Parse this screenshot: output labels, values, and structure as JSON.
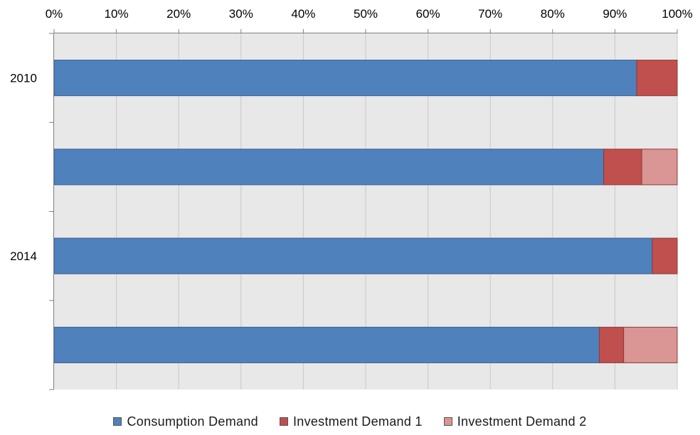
{
  "chart_data": {
    "type": "bar",
    "orientation": "horizontal",
    "stacked": "100%",
    "categories": [
      "2010",
      "",
      "2014",
      ""
    ],
    "series": [
      {
        "name": "Consumption Demand",
        "color": "#4F81BD",
        "values": [
          93.5,
          88.2,
          96.0,
          87.5
        ]
      },
      {
        "name": "Investment Demand 1",
        "color": "#C0504D",
        "values": [
          6.5,
          6.1,
          4.0,
          3.9
        ]
      },
      {
        "name": "Investment Demand 2",
        "color": "#D99694",
        "values": [
          0.0,
          5.7,
          0.0,
          8.6
        ]
      }
    ],
    "x_axis": {
      "position": "top",
      "range": [
        0,
        100
      ],
      "ticks": [
        "0%",
        "10%",
        "20%",
        "30%",
        "40%",
        "50%",
        "60%",
        "70%",
        "80%",
        "90%",
        "100%"
      ]
    },
    "grid": true,
    "plot_background": "#E8E8E8",
    "legend_position": "bottom"
  }
}
